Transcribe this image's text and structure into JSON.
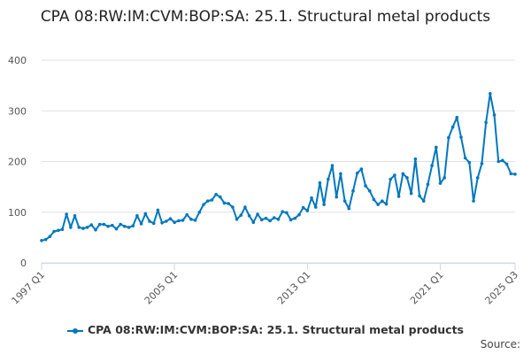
{
  "chart_data": {
    "type": "line",
    "title": "CPA 08:RW:IM:CVM:BOP:SA: 25.1. Structural metal products",
    "xlabel": "",
    "ylabel": "",
    "ylim": [
      0,
      400
    ],
    "yticks": [
      "0",
      "100",
      "200",
      "300",
      "400"
    ],
    "xticks": [
      "1997 Q1",
      "2005 Q1",
      "2013 Q1",
      "2021 Q1",
      "2025 Q3"
    ],
    "xtick_index": [
      0,
      32,
      64,
      96,
      114
    ],
    "start": "1997 Q1",
    "grid": true,
    "legend_position": "bottom",
    "color": "#0077be",
    "series": [
      {
        "name": "CPA 08:RW:IM:CVM:BOP:SA: 25.1. Structural metal products",
        "values": [
          44,
          46,
          52,
          62,
          64,
          66,
          96,
          70,
          93,
          70,
          68,
          70,
          75,
          65,
          76,
          76,
          72,
          74,
          67,
          76,
          72,
          70,
          73,
          93,
          77,
          97,
          82,
          78,
          104,
          79,
          82,
          87,
          80,
          83,
          84,
          95,
          86,
          84,
          100,
          115,
          122,
          124,
          135,
          130,
          118,
          117,
          110,
          86,
          94,
          110,
          93,
          80,
          96,
          85,
          88,
          83,
          89,
          86,
          101,
          99,
          85,
          88,
          95,
          109,
          103,
          128,
          110,
          158,
          115,
          165,
          192,
          130,
          176,
          122,
          107,
          142,
          177,
          185,
          152,
          142,
          125,
          115,
          122,
          116,
          165,
          173,
          131,
          176,
          168,
          137,
          205,
          132,
          122,
          155,
          192,
          228,
          157,
          168,
          247,
          268,
          287,
          248,
          207,
          198,
          122,
          168,
          196,
          277,
          334,
          292,
          200,
          202,
          195,
          176,
          175
        ]
      }
    ]
  },
  "source_label": "Source:"
}
